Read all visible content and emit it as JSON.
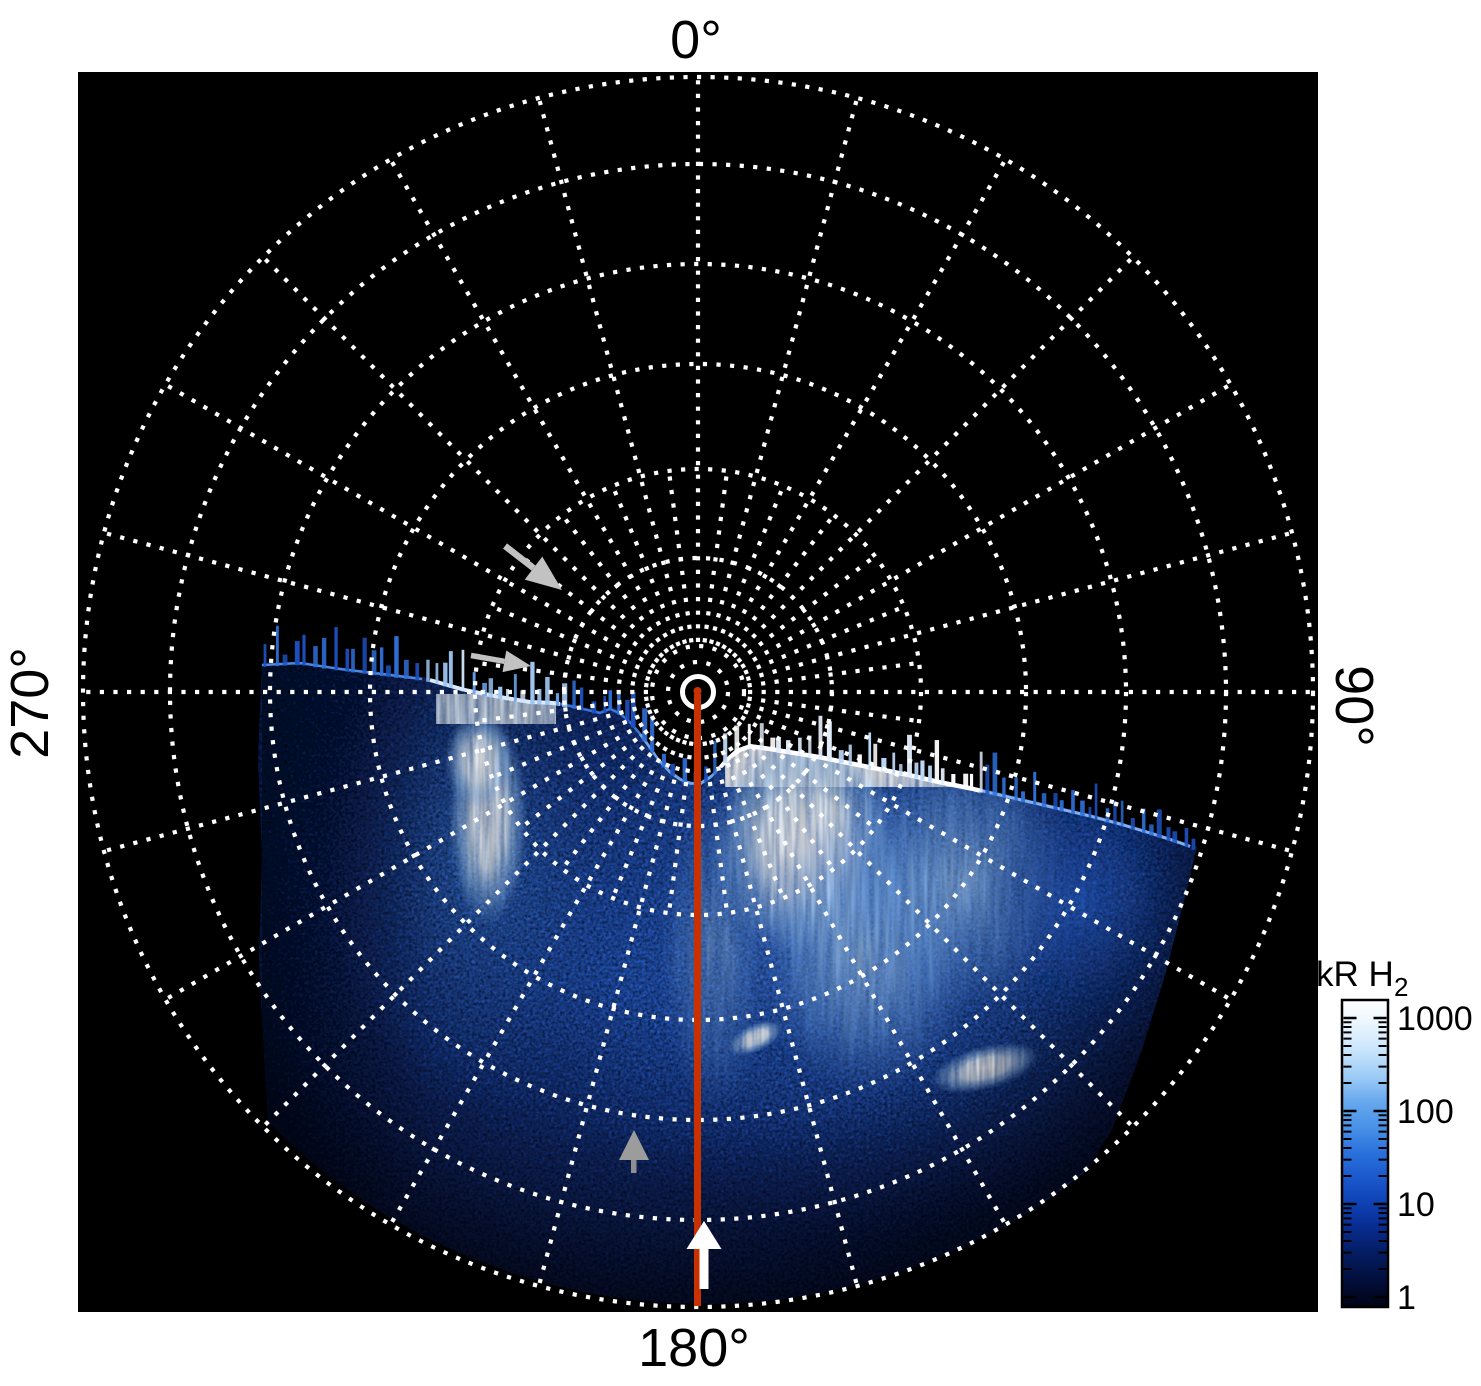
{
  "figure": {
    "background": "#ffffff",
    "plot_bg": "#000000",
    "angle_labels": {
      "top": "0°",
      "right": "90°",
      "bottom": "180°",
      "left": "270°"
    },
    "colorbar": {
      "title_main": "kR H",
      "title_sub": "2",
      "tick_labels": [
        "1000",
        "100",
        "10",
        "1"
      ],
      "scale": "log"
    },
    "colors": {
      "grid": "#ffffff",
      "meridian_line": "#c93100",
      "gray_arrow": "#c2c2c2",
      "gray_triangle": "#9c9c9c",
      "white_arrow": "#ffffff",
      "emission_mid_blue": "#2f6fd8",
      "emission_bright": "#ffffff"
    }
  },
  "chart_data": {
    "type": "heatmap",
    "projection": "polar",
    "angular_tick_labels": [
      "0°",
      "90°",
      "180°",
      "270°"
    ],
    "angular_grid_spacing_deg": 15,
    "grid_style": "dotted",
    "colorbar": {
      "title": "kR H2",
      "scale": "log",
      "ticks": [
        1000,
        100,
        10,
        1
      ],
      "range": [
        1,
        1000
      ],
      "colormap": "black-blue-white"
    },
    "annotations": [
      {
        "type": "line",
        "name": "meridian-line-180",
        "color": "#c93100",
        "along_deg": 180
      },
      {
        "type": "arrow",
        "name": "white-up-arrow-on-180-meridian",
        "color": "#ffffff"
      },
      {
        "type": "arrow",
        "name": "gray-arrow-outer-upper-left",
        "color": "#c2c2c2"
      },
      {
        "type": "arrow",
        "name": "gray-arrow-inner-upper-left",
        "color": "#c2c2c2"
      },
      {
        "type": "marker",
        "name": "gray-triangle-marker-lower-left",
        "color": "#9c9c9c"
      }
    ],
    "description": "Polar map of H2 UV auroral emission (kR). Emission fills the hemisphere around the 180° meridian (lower half of the disk), brightest in patches just right of the 180° line; dotted white polar grid overlaid; intensity on a log color scale from 1 to 1000 kR."
  }
}
